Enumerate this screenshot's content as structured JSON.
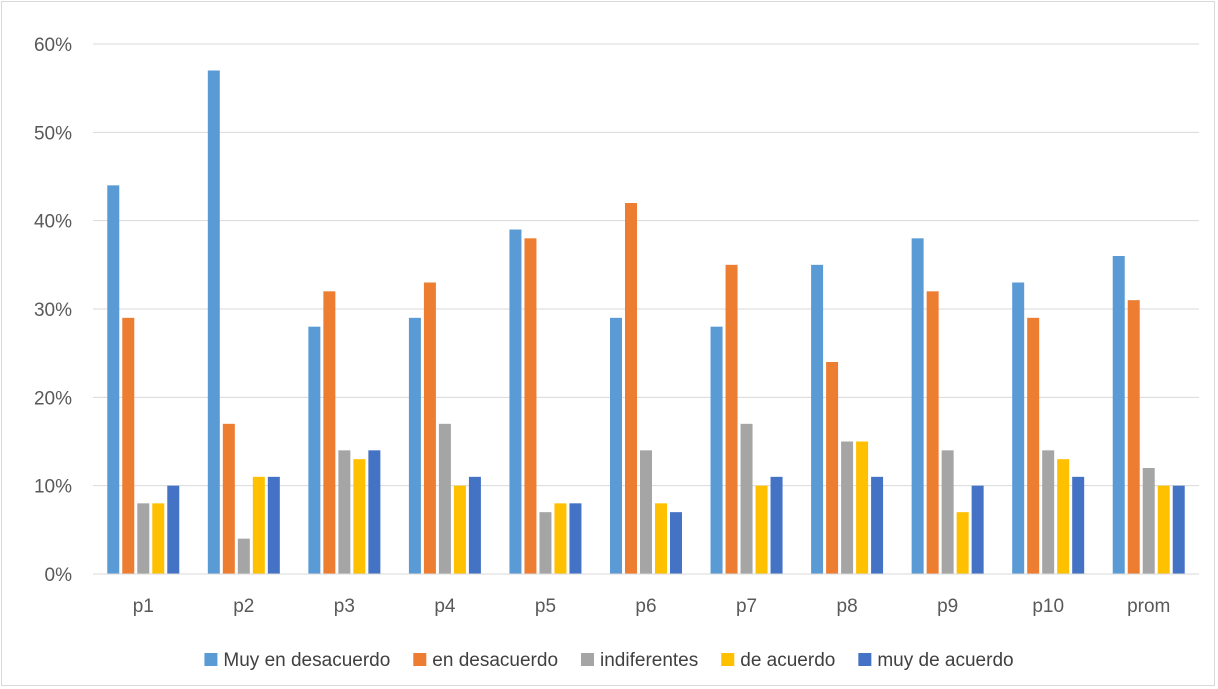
{
  "chart_data": {
    "type": "bar",
    "title": "",
    "xlabel": "",
    "ylabel": "",
    "categories": [
      "p1",
      "p2",
      "p3",
      "p4",
      "p5",
      "p6",
      "p7",
      "p8",
      "p9",
      "p10",
      "prom"
    ],
    "y_tick_labels": [
      "0%",
      "10%",
      "20%",
      "30%",
      "40%",
      "50%",
      "60%"
    ],
    "ylim": [
      0,
      60
    ],
    "y_unit": "%",
    "grid": true,
    "legend_position": "bottom",
    "series": [
      {
        "name": "Muy en desacuerdo",
        "color": "#5b9bd5",
        "values": [
          44,
          57,
          28,
          29,
          39,
          29,
          28,
          35,
          38,
          33,
          36
        ]
      },
      {
        "name": "en desacuerdo",
        "color": "#ed7d31",
        "values": [
          29,
          17,
          32,
          33,
          38,
          42,
          35,
          24,
          32,
          29,
          31
        ]
      },
      {
        "name": "indiferentes",
        "color": "#a5a5a5",
        "values": [
          8,
          4,
          14,
          17,
          7,
          14,
          17,
          15,
          14,
          14,
          12
        ]
      },
      {
        "name": "de acuerdo",
        "color": "#ffc000",
        "values": [
          8,
          11,
          13,
          10,
          8,
          8,
          10,
          15,
          7,
          13,
          10
        ]
      },
      {
        "name": "muy de acuerdo",
        "color": "#4472c4",
        "values": [
          10,
          11,
          14,
          11,
          8,
          7,
          11,
          11,
          10,
          11,
          10
        ]
      }
    ]
  }
}
